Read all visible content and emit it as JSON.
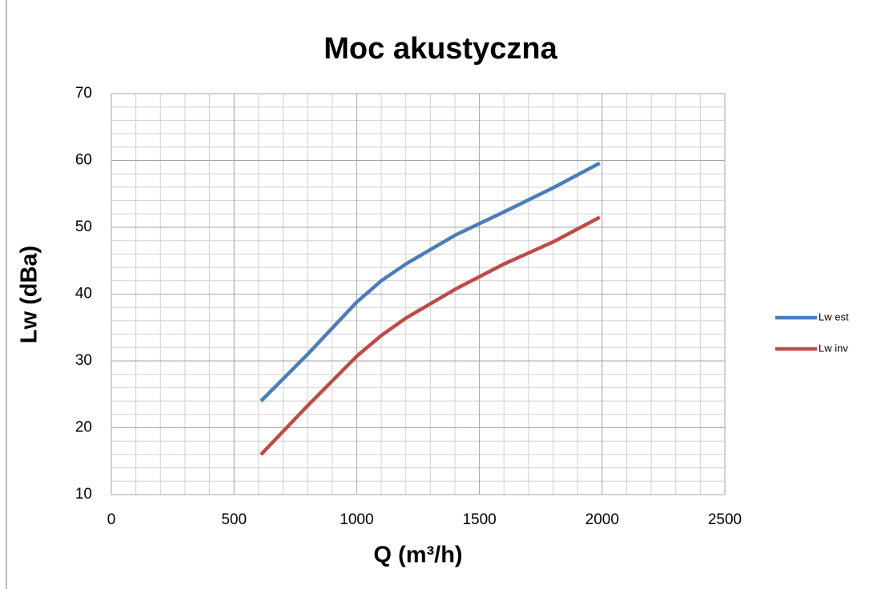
{
  "chart_data": {
    "type": "line",
    "title": "Moc akustyczna",
    "x_label": "Q (m³/h)",
    "y_label": "Lw (dBa)",
    "x": [
      610,
      800,
      1000,
      1100,
      1200,
      1400,
      1600,
      1800,
      1990
    ],
    "series": [
      {
        "name": "Lw est",
        "color": "#4a7ebb",
        "values": [
          24,
          31,
          38.8,
          42,
          44.5,
          48.8,
          52.3,
          55.9,
          59.6
        ]
      },
      {
        "name": "Lw inv",
        "color": "#be4b48",
        "values": [
          16,
          23.3,
          30.7,
          33.8,
          36.4,
          40.7,
          44.5,
          47.8,
          51.5
        ]
      }
    ],
    "xlim": [
      0,
      2500
    ],
    "xticks": [
      0,
      500,
      1000,
      1500,
      2000,
      2500
    ],
    "ylim": [
      10,
      70
    ],
    "yticks": [
      10,
      20,
      30,
      40,
      50,
      60,
      70
    ],
    "grid": true,
    "minor_grid": true,
    "legend": "right"
  }
}
